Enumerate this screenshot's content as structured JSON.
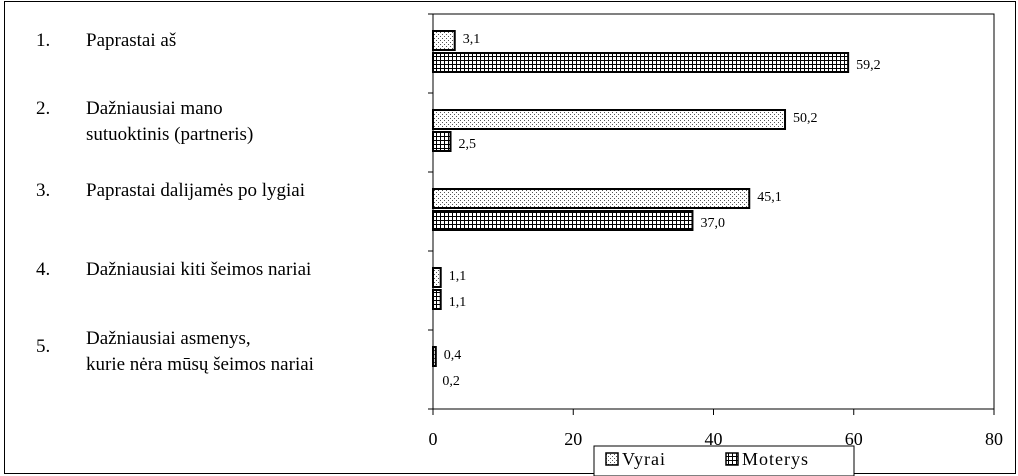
{
  "chart_data": {
    "type": "bar",
    "orientation": "horizontal",
    "categories": [
      {
        "num": "1.",
        "label": "Paprastai aš"
      },
      {
        "num": "2.",
        "label": "Dažniausiai mano\nsutuoktinis (partneris)"
      },
      {
        "num": "3.",
        "label": "Paprastai dalijamės po lygiai"
      },
      {
        "num": "4.",
        "label": "Dažniausiai kiti šeimos nariai"
      },
      {
        "num": "5.",
        "label": "Dažniausiai asmenys,\nkurie nėra mūsų šeimos nariai"
      }
    ],
    "series": [
      {
        "name": "Vyrai",
        "pattern": "dots",
        "values": [
          3.1,
          50.2,
          45.1,
          1.1,
          0.4
        ],
        "labels": [
          "3,1",
          "50,2",
          "45,1",
          "1,1",
          "0,4"
        ]
      },
      {
        "name": "Moterys",
        "pattern": "grid",
        "values": [
          59.2,
          2.5,
          37.0,
          1.1,
          0.2
        ],
        "labels": [
          "59,2",
          "2,5",
          "37,0",
          "1,1",
          "0,2"
        ]
      }
    ],
    "xlim": [
      0,
      80
    ],
    "xticks": [
      "0",
      "20",
      "40",
      "60",
      "80"
    ],
    "legend_position": "bottom",
    "grid": false,
    "colors": {
      "bar_edge": "#000000",
      "dot_fill": "#555555",
      "grid_fill": "#000000"
    }
  }
}
